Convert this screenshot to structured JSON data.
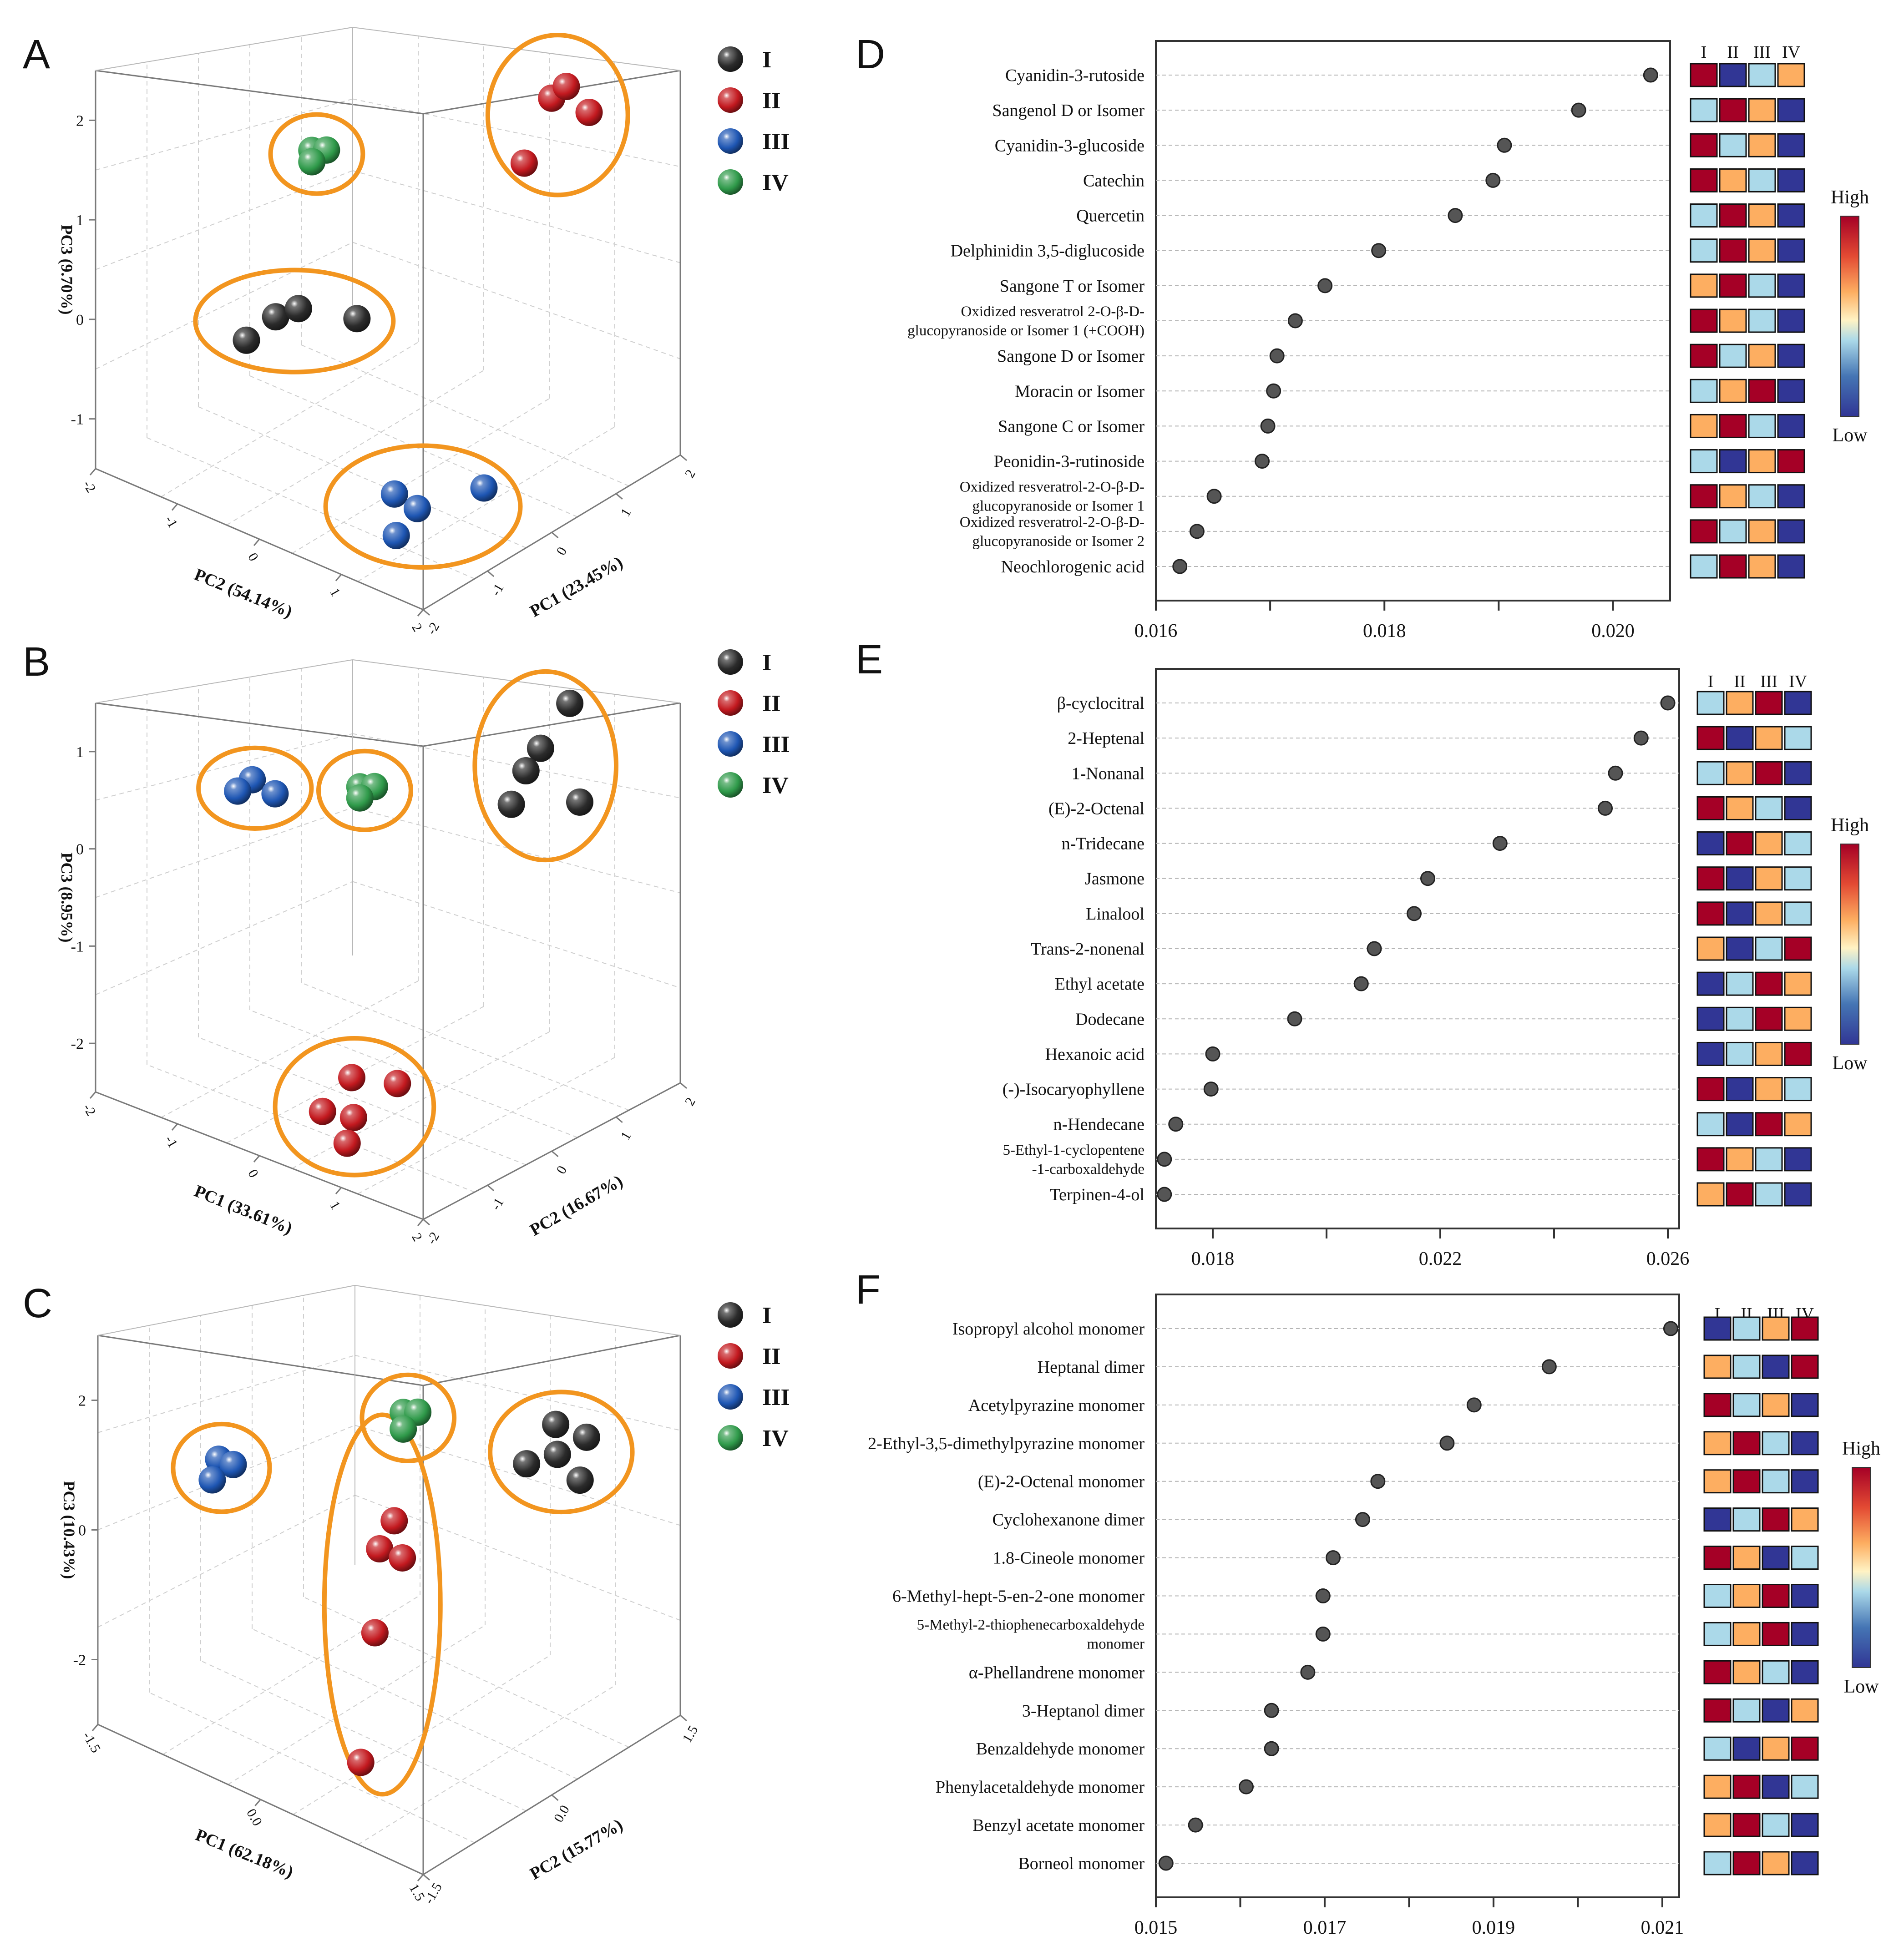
{
  "colors": {
    "I": "#2b2b2b",
    "II": "#c3191f",
    "III": "#1e56b3",
    "IV": "#2f9a4a",
    "ellipse": "#f2951f",
    "dot": "#555555",
    "heat_high": "#a50026",
    "heat_midhigh": "#fdae61",
    "heat_midlow": "#abd9e9",
    "heat_low": "#313695"
  },
  "legend_groups": [
    "I",
    "II",
    "III",
    "IV"
  ],
  "heat_levels": {
    "1": "#a50026",
    "2": "#fdae61",
    "3": "#abd9e9",
    "4": "#313695"
  },
  "chart_data": [
    {
      "panel": "A",
      "type": "scatter",
      "title": "",
      "axes": {
        "x": {
          "label": "PC2 (54.14%)",
          "ticks": [
            "-2",
            "-1",
            "0",
            "1",
            "2"
          ]
        },
        "y": {
          "label": "PC1 (23.45%)",
          "ticks": [
            "-2",
            "-1",
            "0",
            "1",
            "2"
          ]
        },
        "z": {
          "label": "PC3 (9.70%)",
          "ticks": [
            "-1",
            "0",
            "1",
            "2"
          ]
        }
      },
      "legend": [
        "I",
        "II",
        "III",
        "IV"
      ],
      "series": [
        {
          "name": "I",
          "points": [
            [
              -0.9,
              -0.6,
              -0.3
            ],
            [
              -0.7,
              -0.5,
              -0.2
            ],
            [
              -1.1,
              -0.8,
              -0.5
            ],
            [
              -0.3,
              -0.1,
              -0.3
            ]
          ]
        },
        {
          "name": "II",
          "points": [
            [
              0.9,
              1.4,
              1.5
            ],
            [
              1.0,
              1.5,
              1.6
            ],
            [
              1.2,
              1.6,
              1.4
            ],
            [
              0.8,
              1.1,
              1.0
            ]
          ]
        },
        {
          "name": "III",
          "points": [
            [
              1.1,
              -1.3,
              -1.0
            ],
            [
              1.3,
              -1.2,
              -1.1
            ],
            [
              1.2,
              -1.4,
              -1.3
            ],
            [
              1.8,
              -0.8,
              -0.9
            ]
          ]
        },
        {
          "name": "IV",
          "points": [
            [
              -1.4,
              0.6,
              0.6
            ],
            [
              -1.3,
              0.7,
              0.6
            ],
            [
              -1.4,
              0.6,
              0.5
            ]
          ]
        }
      ]
    },
    {
      "panel": "B",
      "type": "scatter",
      "title": "",
      "axes": {
        "x": {
          "label": "PC1 (33.61%)",
          "ticks": [
            "-2",
            "-1",
            "0",
            "1",
            "2"
          ]
        },
        "y": {
          "label": "PC2 (16.67%)",
          "ticks": [
            "-2",
            "-1",
            "0",
            "1",
            "2"
          ]
        },
        "z": {
          "label": "PC3 (8.95%)",
          "ticks": [
            "-2",
            "-1",
            "0",
            "1"
          ]
        }
      },
      "legend": [
        "I",
        "II",
        "III",
        "IV"
      ],
      "series": [
        {
          "name": "I",
          "points": [
            [
              1.2,
              1.3,
              1.4
            ],
            [
              1.0,
              1.1,
              1.0
            ],
            [
              0.9,
              1.0,
              0.8
            ],
            [
              0.8,
              0.9,
              0.5
            ],
            [
              1.4,
              1.2,
              0.6
            ]
          ]
        },
        {
          "name": "II",
          "points": [
            [
              0.5,
              -1.2,
              -1.4
            ],
            [
              0.9,
              -1.0,
              -1.4
            ],
            [
              0.3,
              -1.4,
              -1.7
            ],
            [
              0.6,
              -1.3,
              -1.7
            ],
            [
              0.6,
              -1.4,
              -1.9
            ]
          ]
        },
        {
          "name": "III",
          "points": [
            [
              -1.5,
              -0.2,
              0.4
            ],
            [
              -1.6,
              -0.3,
              0.3
            ],
            [
              -1.3,
              -0.1,
              0.3
            ]
          ]
        },
        {
          "name": "IV",
          "points": [
            [
              -0.5,
              0.2,
              0.5
            ],
            [
              -0.4,
              0.3,
              0.5
            ],
            [
              -0.5,
              0.2,
              0.4
            ]
          ]
        }
      ]
    },
    {
      "panel": "C",
      "type": "scatter",
      "title": "",
      "axes": {
        "x": {
          "label": "PC1 (62.18%)",
          "ticks": [
            "-1.5",
            "0.0",
            "1.5"
          ]
        },
        "y": {
          "label": "PC2 (15.77%)",
          "ticks": [
            "-1.5",
            "0.0",
            "1.5"
          ]
        },
        "z": {
          "label": "PC3 (10.43%)",
          "ticks": [
            "-2",
            "0",
            "2"
          ]
        }
      },
      "legend": [
        "I",
        "II",
        "III",
        "IV"
      ],
      "series": [
        {
          "name": "I",
          "points": [
            [
              1.1,
              1.2,
              1.2
            ],
            [
              1.4,
              1.3,
              1.1
            ],
            [
              1.2,
              1.1,
              0.8
            ],
            [
              0.9,
              1.0,
              0.5
            ],
            [
              1.4,
              1.2,
              0.4
            ]
          ]
        },
        {
          "name": "II",
          "points": [
            [
              0.3,
              -0.3,
              0.0
            ],
            [
              0.2,
              -0.4,
              -0.5
            ],
            [
              0.4,
              -0.3,
              -0.6
            ],
            [
              0.3,
              -0.6,
              -1.8
            ],
            [
              0.6,
              -1.2,
              -3.5
            ]
          ]
        },
        {
          "name": "III",
          "points": [
            [
              -1.7,
              -0.5,
              -0.1
            ],
            [
              -1.6,
              -0.4,
              -0.2
            ],
            [
              -1.7,
              -0.6,
              -0.4
            ]
          ]
        },
        {
          "name": "IV",
          "points": [
            [
              -0.3,
              0.6,
              0.9
            ],
            [
              -0.2,
              0.7,
              0.9
            ],
            [
              -0.3,
              0.6,
              0.6
            ]
          ]
        }
      ]
    },
    {
      "panel": "D",
      "type": "dot",
      "title": "",
      "xlim": [
        0.016,
        0.0205
      ],
      "xticks": [
        "0.016",
        "0.018",
        "0.020"
      ],
      "xtick_values": [
        0.016,
        0.018,
        0.02
      ],
      "heat_header": [
        "I",
        "II",
        "III",
        "IV"
      ],
      "heat_legend": {
        "high": "High",
        "low": "Low"
      },
      "items": [
        {
          "label": [
            "Cyanidin-3-rutoside"
          ],
          "value": 0.02033,
          "heat": [
            1,
            4,
            3,
            2
          ]
        },
        {
          "label": [
            "Sangenol D or Isomer"
          ],
          "value": 0.0197,
          "heat": [
            3,
            1,
            2,
            4
          ]
        },
        {
          "label": [
            "Cyanidin-3-glucoside"
          ],
          "value": 0.01905,
          "heat": [
            1,
            3,
            2,
            4
          ]
        },
        {
          "label": [
            "Catechin"
          ],
          "value": 0.01895,
          "heat": [
            1,
            2,
            3,
            4
          ]
        },
        {
          "label": [
            "Quercetin"
          ],
          "value": 0.01862,
          "heat": [
            3,
            1,
            2,
            4
          ]
        },
        {
          "label": [
            "Delphinidin 3,5-diglucoside"
          ],
          "value": 0.01795,
          "heat": [
            3,
            1,
            2,
            4
          ]
        },
        {
          "label": [
            "Sangone T or Isomer"
          ],
          "value": 0.01748,
          "heat": [
            2,
            1,
            3,
            4
          ]
        },
        {
          "label": [
            "Oxidized resveratrol 2-O-β-D-",
            "glucopyranoside or Isomer 1 (+COOH)"
          ],
          "value": 0.01722,
          "heat": [
            1,
            2,
            3,
            4
          ]
        },
        {
          "label": [
            "Sangone D or Isomer"
          ],
          "value": 0.01706,
          "heat": [
            1,
            3,
            2,
            4
          ]
        },
        {
          "label": [
            "Moracin or Isomer"
          ],
          "value": 0.01703,
          "heat": [
            3,
            2,
            1,
            4
          ]
        },
        {
          "label": [
            "Sangone C or Isomer"
          ],
          "value": 0.01698,
          "heat": [
            2,
            1,
            3,
            4
          ]
        },
        {
          "label": [
            "Peonidin-3-rutinoside"
          ],
          "value": 0.01693,
          "heat": [
            3,
            4,
            2,
            1
          ]
        },
        {
          "label": [
            "Oxidized resveratrol-2-O-β-D-",
            "glucopyranoside or Isomer 1"
          ],
          "value": 0.01651,
          "heat": [
            1,
            2,
            3,
            4
          ]
        },
        {
          "label": [
            "Oxidized resveratrol-2-O-β-D-",
            "glucopyranoside or Isomer 2"
          ],
          "value": 0.01636,
          "heat": [
            1,
            3,
            2,
            4
          ]
        },
        {
          "label": [
            "Neochlorogenic acid"
          ],
          "value": 0.01621,
          "heat": [
            3,
            1,
            2,
            4
          ]
        }
      ]
    },
    {
      "panel": "E",
      "type": "dot",
      "title": "",
      "xlim": [
        0.017,
        0.0262
      ],
      "xticks": [
        "0.018",
        "0.022",
        "0.026"
      ],
      "xtick_values": [
        0.018,
        0.022,
        0.026
      ],
      "heat_header": [
        "I",
        "II",
        "III",
        "IV"
      ],
      "heat_legend": {
        "high": "High",
        "low": "Low"
      },
      "items": [
        {
          "label": [
            "β-cyclocitral"
          ],
          "value": 0.026,
          "heat": [
            3,
            2,
            1,
            4
          ]
        },
        {
          "label": [
            "2-Heptenal"
          ],
          "value": 0.02553,
          "heat": [
            1,
            4,
            2,
            3
          ]
        },
        {
          "label": [
            "1-Nonanal"
          ],
          "value": 0.02508,
          "heat": [
            3,
            2,
            1,
            4
          ]
        },
        {
          "label": [
            "(E)-2-Octenal"
          ],
          "value": 0.0249,
          "heat": [
            1,
            2,
            3,
            4
          ]
        },
        {
          "label": [
            "n-Tridecane"
          ],
          "value": 0.02305,
          "heat": [
            4,
            1,
            2,
            3
          ]
        },
        {
          "label": [
            "Jasmone"
          ],
          "value": 0.02178,
          "heat": [
            1,
            4,
            2,
            3
          ]
        },
        {
          "label": [
            "Linalool"
          ],
          "value": 0.02154,
          "heat": [
            1,
            4,
            2,
            3
          ]
        },
        {
          "label": [
            "Trans-2-nonenal"
          ],
          "value": 0.02084,
          "heat": [
            2,
            4,
            3,
            1
          ]
        },
        {
          "label": [
            "Ethyl acetate"
          ],
          "value": 0.02061,
          "heat": [
            4,
            3,
            1,
            2
          ]
        },
        {
          "label": [
            "Dodecane"
          ],
          "value": 0.01944,
          "heat": [
            4,
            3,
            1,
            2
          ]
        },
        {
          "label": [
            "Hexanoic acid"
          ],
          "value": 0.018,
          "heat": [
            4,
            3,
            2,
            1
          ]
        },
        {
          "label": [
            "(-)-Isocaryophyllene"
          ],
          "value": 0.01797,
          "heat": [
            1,
            4,
            2,
            3
          ]
        },
        {
          "label": [
            "n-Hendecane"
          ],
          "value": 0.01735,
          "heat": [
            3,
            4,
            1,
            2
          ]
        },
        {
          "label": [
            "5-Ethyl-1-cyclopentene",
            "-1-carboxaldehyde"
          ],
          "value": 0.01715,
          "heat": [
            1,
            2,
            3,
            4
          ]
        },
        {
          "label": [
            "Terpinen-4-ol"
          ],
          "value": 0.01715,
          "heat": [
            2,
            1,
            3,
            4
          ]
        }
      ]
    },
    {
      "panel": "F",
      "type": "dot",
      "title": "",
      "xlim": [
        0.015,
        0.0212
      ],
      "xticks": [
        "0.015",
        "0.017",
        "0.019",
        "0.021"
      ],
      "xtick_values": [
        0.015,
        0.017,
        0.019,
        0.021
      ],
      "heat_header": [
        "I",
        "II",
        "III",
        "IV"
      ],
      "heat_legend": {
        "high": "High",
        "low": "Low"
      },
      "items": [
        {
          "label": [
            "Isopropyl alcohol monomer"
          ],
          "value": 0.0211,
          "heat": [
            4,
            3,
            2,
            1
          ]
        },
        {
          "label": [
            "Heptanal dimer"
          ],
          "value": 0.01966,
          "heat": [
            2,
            3,
            4,
            1
          ]
        },
        {
          "label": [
            "Acetylpyrazine monomer"
          ],
          "value": 0.01877,
          "heat": [
            1,
            3,
            2,
            4
          ]
        },
        {
          "label": [
            "2-Ethyl-3,5-dimethylpyrazine monomer"
          ],
          "value": 0.01845,
          "heat": [
            2,
            1,
            3,
            4
          ]
        },
        {
          "label": [
            "(E)-2-Octenal monomer"
          ],
          "value": 0.01763,
          "heat": [
            2,
            1,
            3,
            4
          ]
        },
        {
          "label": [
            "Cyclohexanone dimer"
          ],
          "value": 0.01745,
          "heat": [
            4,
            3,
            1,
            2
          ]
        },
        {
          "label": [
            "1.8-Cineole monomer"
          ],
          "value": 0.0171,
          "heat": [
            1,
            2,
            4,
            3
          ]
        },
        {
          "label": [
            "6-Methyl-hept-5-en-2-one monomer"
          ],
          "value": 0.01698,
          "heat": [
            3,
            2,
            1,
            4
          ]
        },
        {
          "label": [
            "5-Methyl-2-thiophenecarboxaldehyde",
            "monomer"
          ],
          "value": 0.01698,
          "heat": [
            3,
            2,
            1,
            4
          ]
        },
        {
          "label": [
            "α-Phellandrene monomer"
          ],
          "value": 0.0168,
          "heat": [
            1,
            2,
            3,
            4
          ]
        },
        {
          "label": [
            "3-Heptanol dimer"
          ],
          "value": 0.01637,
          "heat": [
            1,
            3,
            4,
            2
          ]
        },
        {
          "label": [
            "Benzaldehyde monomer"
          ],
          "value": 0.01637,
          "heat": [
            3,
            4,
            2,
            1
          ]
        },
        {
          "label": [
            "Phenylacetaldehyde monomer"
          ],
          "value": 0.01607,
          "heat": [
            2,
            1,
            4,
            3
          ]
        },
        {
          "label": [
            "Benzyl acetate monomer"
          ],
          "value": 0.01547,
          "heat": [
            2,
            1,
            3,
            4
          ]
        },
        {
          "label": [
            "Borneol monomer"
          ],
          "value": 0.01512,
          "heat": [
            3,
            1,
            2,
            4
          ]
        }
      ]
    }
  ]
}
